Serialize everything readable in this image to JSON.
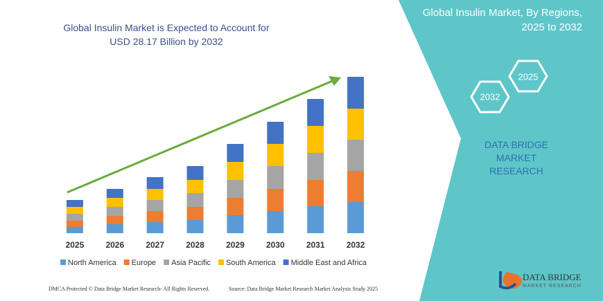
{
  "chart_data": {
    "type": "bar",
    "stacked": true,
    "title": "Global Insulin Market is Expected to Account for USD 28.17 Billion by 2032",
    "categories": [
      "2025",
      "2026",
      "2027",
      "2028",
      "2029",
      "2030",
      "2031",
      "2032"
    ],
    "series": [
      {
        "name": "North America",
        "color": "#5b9bd5",
        "values": [
          9,
          13,
          16,
          19,
          26,
          32,
          39,
          45
        ]
      },
      {
        "name": "Europe",
        "color": "#ed7d31",
        "values": [
          9,
          12,
          16,
          19,
          25,
          32,
          38,
          45
        ]
      },
      {
        "name": "Asia Pacific",
        "color": "#a5a5a5",
        "values": [
          10,
          13,
          16,
          20,
          26,
          33,
          39,
          45
        ]
      },
      {
        "name": "South America",
        "color": "#ffc000",
        "values": [
          10,
          13,
          16,
          19,
          26,
          32,
          39,
          45
        ]
      },
      {
        "name": "Middle East and Africa",
        "color": "#4472c4",
        "values": [
          10,
          13,
          17,
          20,
          26,
          32,
          39,
          46
        ]
      }
    ]
  },
  "side_panel": {
    "title": "Global Insulin Market, By Regions, 2025 to 2032",
    "hexagon_top": "2025",
    "hexagon_bottom": "2032",
    "brand": "DATA BRIDGE MARKET RESEARCH"
  },
  "footer": {
    "left": "DMCA Protected © Data Bridge Market Research- All Rights Reserved.",
    "source": "Source: Data Bridge Market Research Market Analysis Study 2025"
  },
  "logo": {
    "name": "DATA BRIDGE",
    "tagline": "MARKET RESEARCH"
  }
}
